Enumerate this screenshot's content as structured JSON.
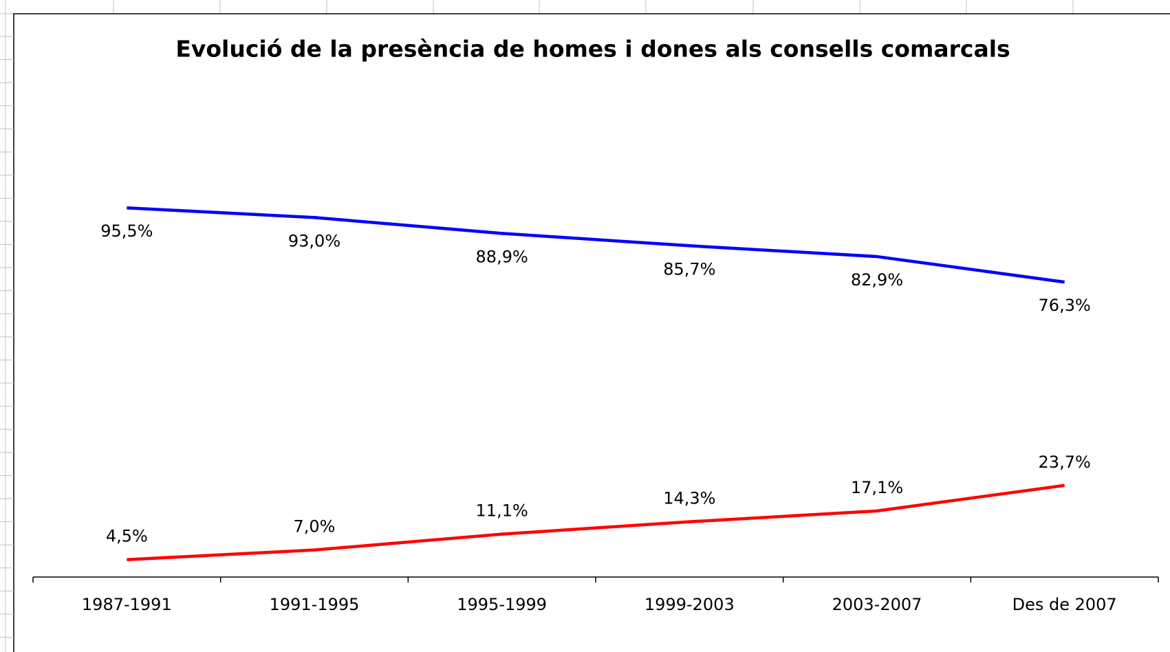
{
  "chart_data": {
    "type": "line",
    "title": "Evolució de la presència de homes i dones als consells comarcals",
    "categories": [
      "1987-1991",
      "1991-1995",
      "1995-1999",
      "1999-2003",
      "2003-2007",
      "Des de 2007"
    ],
    "series": [
      {
        "color": "#0000ff",
        "values": [
          95.5,
          93.0,
          88.9,
          85.7,
          82.9,
          76.3
        ],
        "value_labels": [
          "95,5%",
          "93,0%",
          "88,9%",
          "85,7%",
          "82,9%",
          "76,3%"
        ]
      },
      {
        "color": "#ff0000",
        "values": [
          4.5,
          7.0,
          11.1,
          14.3,
          17.1,
          23.7
        ],
        "value_labels": [
          "4,5%",
          "7,0%",
          "11,1%",
          "14,3%",
          "17,1%",
          "23,7%"
        ]
      }
    ],
    "ylim": [
      0,
      145
    ]
  }
}
